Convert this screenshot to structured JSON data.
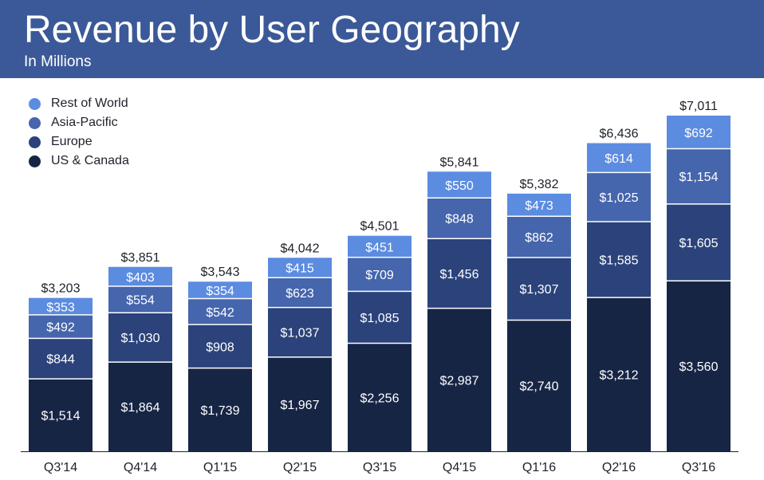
{
  "header": {
    "title": "Revenue by User Geography",
    "subtitle": "In Millions"
  },
  "colors": {
    "header_bg": "#3b5998",
    "US & Canada": "#172545",
    "Europe": "#2b437a",
    "Asia-Pacific": "#4565ac",
    "Rest of World": "#5b8ce0"
  },
  "legend": [
    {
      "label": "Rest of World",
      "color": "#5b8ce0"
    },
    {
      "label": "Asia-Pacific",
      "color": "#4565ac"
    },
    {
      "label": "Europe",
      "color": "#2b437a"
    },
    {
      "label": "US & Canada",
      "color": "#172545"
    }
  ],
  "chart_data": {
    "type": "bar",
    "stacked": true,
    "title": "Revenue by User Geography",
    "subtitle": "In Millions",
    "legend_position": "top-left",
    "grid": false,
    "categories": [
      "Q3'14",
      "Q4'14",
      "Q1'15",
      "Q2'15",
      "Q3'15",
      "Q4'15",
      "Q1'16",
      "Q2'16",
      "Q3'16"
    ],
    "series": [
      {
        "name": "US & Canada",
        "values": [
          1514,
          1864,
          1739,
          1967,
          2256,
          2987,
          2740,
          3212,
          3560
        ],
        "labels": [
          "$1,514",
          "$1,864",
          "$1,739",
          "$1,967",
          "$2,256",
          "$2,987",
          "$2,740",
          "$3,212",
          "$3,560"
        ]
      },
      {
        "name": "Europe",
        "values": [
          844,
          1030,
          908,
          1037,
          1085,
          1456,
          1307,
          1585,
          1605
        ],
        "labels": [
          "$844",
          "$1,030",
          "$908",
          "$1,037",
          "$1,085",
          "$1,456",
          "$1,307",
          "$1,585",
          "$1,605"
        ]
      },
      {
        "name": "Asia-Pacific",
        "values": [
          492,
          554,
          542,
          623,
          709,
          848,
          862,
          1025,
          1154
        ],
        "labels": [
          "$492",
          "$554",
          "$542",
          "$623",
          "$709",
          "$848",
          "$862",
          "$1,025",
          "$1,154"
        ]
      },
      {
        "name": "Rest of World",
        "values": [
          353,
          403,
          354,
          415,
          451,
          550,
          473,
          614,
          692
        ],
        "labels": [
          "$353",
          "$403",
          "$354",
          "$415",
          "$451",
          "$550",
          "$473",
          "$614",
          "$692"
        ]
      }
    ],
    "totals": [
      3203,
      3851,
      3543,
      4042,
      4501,
      5841,
      5382,
      6436,
      7011
    ],
    "total_labels": [
      "$3,203",
      "$3,851",
      "$3,543",
      "$4,042",
      "$4,501",
      "$5,841",
      "$5,382",
      "$6,436",
      "$7,011"
    ],
    "ylim": [
      0,
      7011
    ]
  }
}
